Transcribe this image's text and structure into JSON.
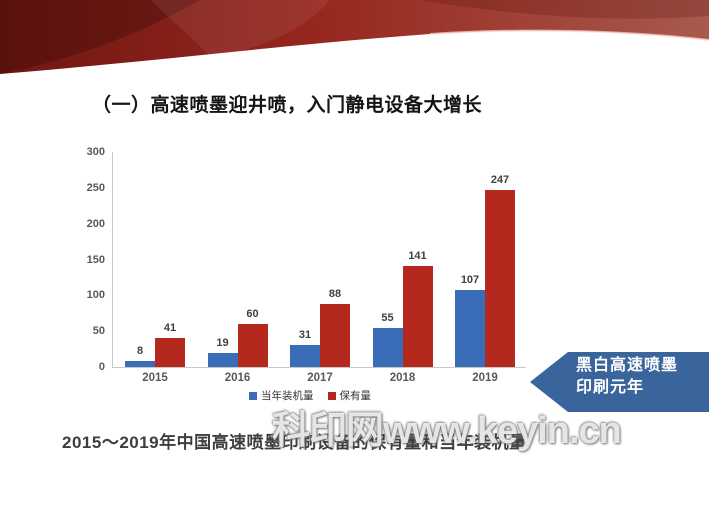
{
  "slide": {
    "title": "（一）高速喷墨迎井喷，入门静电设备大增长",
    "caption": "2015～2019年中国高速喷墨印刷设备的保有量和当年装机量",
    "watermark": "科印网www.keyin.cn",
    "callout": {
      "line1": "黑白高速喷墨",
      "line2": "印刷元年",
      "color": "#3a659c"
    },
    "ribbon_colors": {
      "dark": "#6f1712",
      "mid": "#96271e",
      "light": "#a85a4e"
    }
  },
  "chart_data": {
    "type": "bar",
    "categories": [
      "2015",
      "2016",
      "2017",
      "2018",
      "2019"
    ],
    "series": [
      {
        "name": "当年装机量",
        "color": "#3a6db8",
        "values": [
          8,
          19,
          31,
          55,
          107
        ]
      },
      {
        "name": "保有量",
        "color": "#b5281e",
        "values": [
          41,
          60,
          88,
          141,
          247
        ]
      }
    ],
    "title": "",
    "xlabel": "",
    "ylabel": "",
    "ylim": [
      0,
      300
    ],
    "yticks": [
      0,
      50,
      100,
      150,
      200,
      250,
      300
    ],
    "grid": false,
    "legend_position": "bottom"
  }
}
